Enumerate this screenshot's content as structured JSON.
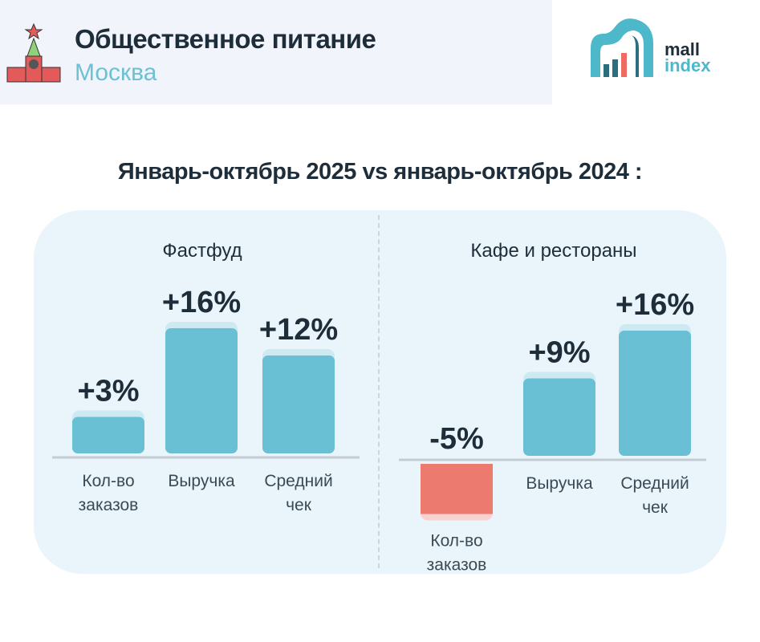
{
  "header": {
    "title": "Общественное питание",
    "subtitle": "Москва",
    "logo_text": [
      "mall",
      "index"
    ]
  },
  "colors": {
    "positive": "#69bfd3",
    "positive_cap": "#cdeaf2",
    "negative": "#ec7a6f",
    "negative_cap": "#f7d3cf",
    "panel": "#e9f5fa",
    "text": "#1e2d3a",
    "accent": "#6cc1d4"
  },
  "chart_data": [
    {
      "type": "bar",
      "title": "Январь-октябрь 2025 vs январь-октябрь 2024 :",
      "subtitle": "Фастфуд",
      "categories": [
        "Кол-во заказов",
        "Выручка",
        "Средний чек"
      ],
      "values": [
        3,
        16,
        12
      ],
      "labels": [
        "+3%",
        "+16%",
        "+12%"
      ],
      "unit": "%"
    },
    {
      "type": "bar",
      "subtitle": "Кафе и рестораны",
      "categories": [
        "Кол-во заказов",
        "Выручка",
        "Средний чек"
      ],
      "values": [
        -5,
        9,
        16
      ],
      "labels": [
        "-5%",
        "+9%",
        "+16%"
      ],
      "unit": "%"
    }
  ]
}
